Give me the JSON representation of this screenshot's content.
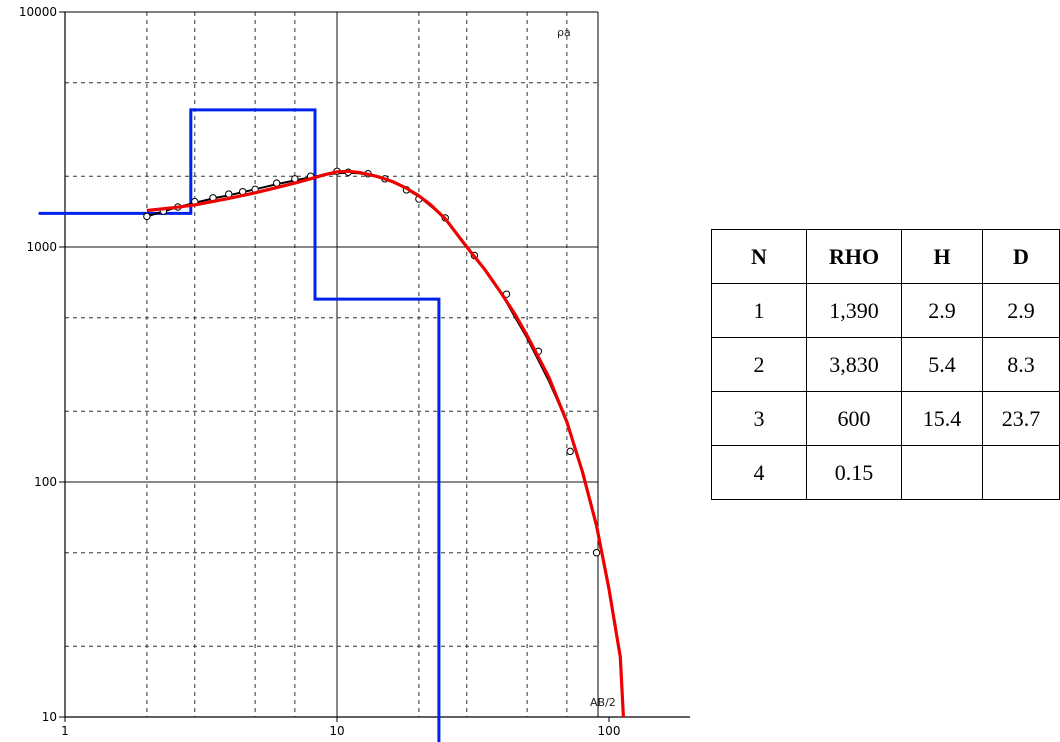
{
  "chart_data": {
    "type": "line",
    "x_scale": "log",
    "y_scale": "log",
    "xlim": [
      1,
      120
    ],
    "ylim": [
      10,
      10000
    ],
    "x_ticks": [
      "1",
      "10",
      "100"
    ],
    "y_ticks": [
      "10",
      "100",
      "1000",
      "10000"
    ],
    "y_axis_label": "ρa",
    "x_axis_label": "AB/2",
    "grid": true,
    "colors": {
      "observed": "#000000",
      "fitted": "#ee0000",
      "model": "#0022ee"
    },
    "observed_points": {
      "x": [
        2,
        2.3,
        2.6,
        3,
        3.5,
        4,
        4.5,
        5,
        6,
        7,
        8,
        10,
        11,
        13,
        15,
        18,
        20,
        25,
        32,
        42,
        55,
        72,
        90
      ],
      "y": [
        1350,
        1420,
        1480,
        1560,
        1620,
        1680,
        1720,
        1760,
        1870,
        1950,
        2000,
        2100,
        2080,
        2050,
        1950,
        1750,
        1600,
        1330,
        920,
        630,
        360,
        135,
        50
      ]
    },
    "observed_line": {
      "x": [
        2,
        2.5,
        3,
        3.5,
        4,
        5,
        6,
        7,
        8,
        9,
        10,
        11,
        12,
        13,
        15,
        17,
        20,
        25,
        30,
        35,
        40,
        50,
        60,
        70
      ],
      "y": [
        1350,
        1460,
        1540,
        1610,
        1660,
        1760,
        1850,
        1920,
        1980,
        2030,
        2060,
        2070,
        2060,
        2030,
        1950,
        1830,
        1640,
        1330,
        1000,
        800,
        640,
        410,
        270,
        180
      ]
    },
    "fitted_curve": {
      "x": [
        2,
        2.5,
        3,
        4,
        5,
        6,
        7,
        8,
        9,
        10,
        11,
        12,
        14,
        16,
        18,
        20,
        22,
        25,
        30,
        35,
        40,
        45,
        50,
        55,
        60,
        70,
        80,
        90,
        100,
        110,
        113
      ],
      "y": [
        1430,
        1470,
        1510,
        1610,
        1700,
        1790,
        1870,
        1950,
        2030,
        2090,
        2100,
        2080,
        2000,
        1900,
        1780,
        1650,
        1520,
        1320,
        1000,
        800,
        640,
        520,
        420,
        340,
        280,
        180,
        110,
        65,
        35,
        18,
        10
      ]
    },
    "model_layers": {
      "x": [
        0.8,
        2.9,
        2.9,
        8.3,
        8.3,
        23.7,
        23.7
      ],
      "y": [
        1390,
        1390,
        3830,
        3830,
        600,
        600,
        0.15
      ]
    }
  },
  "table": {
    "headers": [
      "N",
      "RHO",
      "H",
      "D"
    ],
    "rows": [
      [
        "1",
        "1,390",
        "2.9",
        "2.9"
      ],
      [
        "2",
        "3,830",
        "5.4",
        "8.3"
      ],
      [
        "3",
        "600",
        "15.4",
        "23.7"
      ],
      [
        "4",
        "0.15",
        "",
        ""
      ]
    ]
  }
}
